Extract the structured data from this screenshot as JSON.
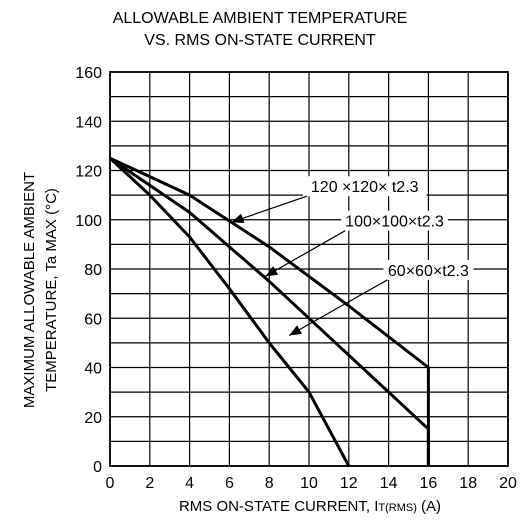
{
  "chart_data": {
    "type": "line",
    "title_lines": [
      "ALLOWABLE AMBIENT TEMPERATURE",
      "VS. RMS ON-STATE CURRENT"
    ],
    "xlabel": {
      "main": "RMS ON-STATE CURRENT, I",
      "sub": "T(RMS)",
      "unit": " (A)"
    },
    "ylabel_lines": [
      "MAXIMUM ALLOWABLE AMBIENT",
      "TEMPERATURE, Ta MAX (°C)"
    ],
    "xlim": [
      0,
      20
    ],
    "ylim": [
      0,
      160
    ],
    "x_ticks": [
      0,
      2,
      4,
      6,
      8,
      10,
      12,
      14,
      16,
      18,
      20
    ],
    "y_ticks": [
      0,
      20,
      40,
      60,
      80,
      100,
      120,
      140,
      160
    ],
    "grid": true,
    "series": [
      {
        "name": "120 ×120× t2.3",
        "points": [
          [
            0,
            125
          ],
          [
            4,
            110
          ],
          [
            8,
            89
          ],
          [
            12,
            65
          ],
          [
            16,
            40
          ],
          [
            16,
            0
          ]
        ],
        "label_at": [
          12.8,
          112
        ],
        "arrow_to": [
          6.1,
          99
        ]
      },
      {
        "name": "100×100×t2.3",
        "points": [
          [
            0,
            125
          ],
          [
            4,
            103
          ],
          [
            8,
            75
          ],
          [
            12,
            45
          ],
          [
            16,
            15
          ],
          [
            16,
            0
          ]
        ],
        "label_at": [
          14.3,
          98
        ],
        "arrow_to": [
          7.8,
          77
        ]
      },
      {
        "name": "60×60×t2.3",
        "points": [
          [
            0,
            125
          ],
          [
            2,
            110
          ],
          [
            4,
            93
          ],
          [
            6,
            72
          ],
          [
            8,
            50
          ],
          [
            10,
            30
          ],
          [
            11,
            15
          ],
          [
            12,
            0
          ]
        ],
        "label_at": [
          16.0,
          78
        ],
        "arrow_to": [
          9.0,
          53
        ]
      }
    ]
  }
}
